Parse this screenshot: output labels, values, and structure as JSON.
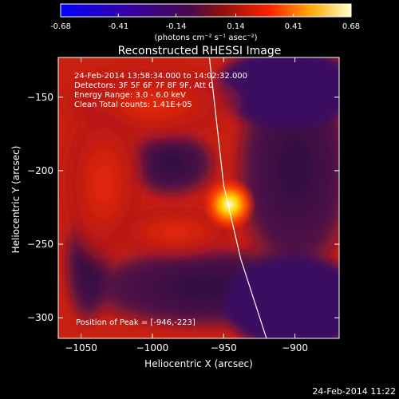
{
  "colorbar": {
    "tick_labels": [
      "-0.68",
      "-0.41",
      "-0.14",
      "0.14",
      "0.41",
      "0.68"
    ],
    "tick_values": [
      -0.68,
      -0.41,
      -0.14,
      0.14,
      0.41,
      0.68
    ],
    "range": [
      -0.68,
      0.68
    ],
    "units_label": "(photons cm⁻² s⁻¹ asec⁻²)",
    "stops": [
      {
        "v": 0.0,
        "color": "#0000ff"
      },
      {
        "v": 0.22,
        "color": "#3300aa"
      },
      {
        "v": 0.45,
        "color": "#4a0a4a"
      },
      {
        "v": 0.55,
        "color": "#8a1010"
      },
      {
        "v": 0.72,
        "color": "#ff2200"
      },
      {
        "v": 0.86,
        "color": "#ffaa00"
      },
      {
        "v": 1.0,
        "color": "#ffffcc"
      }
    ]
  },
  "plot": {
    "title": "Reconstructed RHESSI Image",
    "annotation_lines": [
      "24-Feb-2014 13:58:34.000 to 14:02:32.000",
      "Detectors: 3F 5F 6F 7F 8F 9F, Att 0",
      "Energy Range: 3.0 - 6.0 keV",
      "Clean     Total counts: 1.41E+05"
    ],
    "peak_text": "Position of Peak = [-946,-223]",
    "xlabel": "Heliocentric X (arcsec)",
    "ylabel": "Heliocentric Y (arcsec)",
    "x_ticks": [
      -1050,
      -1000,
      -950,
      -900
    ],
    "x_tick_labels": [
      "−1050",
      "−1000",
      "−950",
      "−900"
    ],
    "y_ticks": [
      -150,
      -200,
      -250,
      -300
    ],
    "y_tick_labels": [
      "−150",
      "−200",
      "−250",
      "−300"
    ],
    "xlim": [
      -1066,
      -869
    ],
    "ylim": [
      -314,
      -123
    ],
    "peak": [
      -946,
      -223
    ],
    "limb_points": [
      [
        -960,
        -123
      ],
      [
        -950,
        -210
      ],
      [
        -938,
        -260
      ],
      [
        -920,
        -314
      ]
    ],
    "colors": {
      "background_dark": "#3a1060",
      "flare_core": "#ffffa0",
      "limb_line": "#ffffff"
    }
  },
  "footer": {
    "timestamp": "24-Feb-2014 11:22"
  }
}
